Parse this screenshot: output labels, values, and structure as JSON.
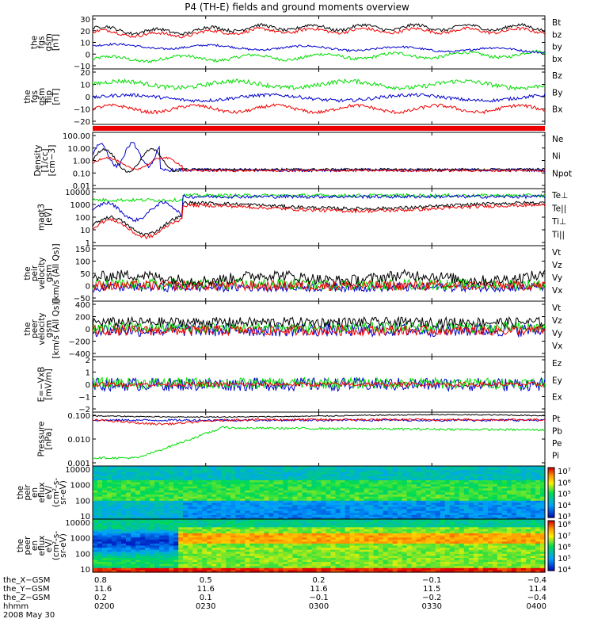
{
  "title": "P4 (TH-E) fields and ground moments overview",
  "colors": {
    "black": "#000000",
    "red": "#ee0000",
    "green": "#00dd00",
    "blue": "#0000cc"
  },
  "chart_data": {
    "type": "line",
    "time_labels": [
      "0200",
      "0230",
      "0300",
      "0330",
      "0400"
    ],
    "panels": [
      {
        "ylabel": [
          "the",
          "fgs",
          "gsm",
          "[nT]"
        ],
        "ticks": [
          "30",
          "20",
          "10",
          "0",
          "−10"
        ],
        "ylim": [
          -18,
          32
        ],
        "series": [
          {
            "name": "Bt",
            "color": "#000000"
          },
          {
            "name": "bz",
            "color": "#ee0000"
          },
          {
            "name": "by",
            "color": "#00dd00"
          },
          {
            "name": "bx",
            "color": "#0000cc"
          }
        ]
      },
      {
        "ylabel": [
          "the",
          "fgs",
          "gsm",
          "flip",
          "[nT]"
        ],
        "ticks": [
          "20",
          "10",
          "0",
          "−10",
          "−20"
        ],
        "ylim": [
          -26,
          22
        ],
        "series": [
          {
            "name": "Bz",
            "color": "#ee0000"
          },
          {
            "name": "By",
            "color": "#00dd00"
          },
          {
            "name": "Bx",
            "color": "#0000cc"
          }
        ]
      },
      {
        "ylabel": [
          "Density",
          "[1/cc]",
          "[cm−3]"
        ],
        "ticks": [
          "100.00",
          "10.00",
          "1.00",
          "0.10",
          "0.01"
        ],
        "ylim": [
          0.01,
          100
        ],
        "log": true,
        "series": [
          {
            "name": "Ne",
            "color": "#ee0000"
          },
          {
            "name": "Ni",
            "color": "#000000"
          },
          {
            "name": "Npot",
            "color": "#0000cc"
          }
        ]
      },
      {
        "ylabel": [
          "magt3",
          "[eV]"
        ],
        "ticks": [
          "10000",
          "1000",
          "100",
          "10",
          "1"
        ],
        "ylim": [
          1,
          10000
        ],
        "log": true,
        "series": [
          {
            "name": "Te⊥",
            "color": "#ee0000"
          },
          {
            "name": "Te||",
            "color": "#000000"
          },
          {
            "name": "Ti⊥",
            "color": "#0000cc"
          },
          {
            "name": "Ti||",
            "color": "#00dd00"
          }
        ]
      },
      {
        "ylabel": [
          "the",
          "peir",
          "velocity",
          "gsm",
          "[km/s (All Qs)]"
        ],
        "ticks": [
          "150",
          "100",
          "50",
          "0",
          "−50"
        ],
        "ylim": [
          -60,
          150
        ],
        "series": [
          {
            "name": "Vt",
            "color": "#000000"
          },
          {
            "name": "Vz",
            "color": "#ee0000"
          },
          {
            "name": "Vy",
            "color": "#00dd00"
          },
          {
            "name": "Vx",
            "color": "#0000cc"
          }
        ]
      },
      {
        "ylabel": [
          "the",
          "peer",
          "velocity",
          "gsm",
          "[km/s (All Qs)]"
        ],
        "ticks": [
          "400",
          "200",
          "0",
          "−200",
          "−400"
        ],
        "ylim": [
          -400,
          400
        ],
        "series": [
          {
            "name": "Vt",
            "color": "#000000"
          },
          {
            "name": "Vz",
            "color": "#ee0000"
          },
          {
            "name": "Vy",
            "color": "#00dd00"
          },
          {
            "name": "Vx",
            "color": "#0000cc"
          }
        ]
      },
      {
        "ylabel": [
          "E=−VxB",
          "[mV/m]"
        ],
        "ticks": [
          "2",
          "1",
          "0",
          "−1",
          "−2"
        ],
        "ylim": [
          -2,
          2
        ],
        "series": [
          {
            "name": "Ez",
            "color": "#ee0000"
          },
          {
            "name": "Ey",
            "color": "#00dd00"
          },
          {
            "name": "Ex",
            "color": "#0000cc"
          }
        ]
      },
      {
        "ylabel": [
          "Pressure",
          "[nPa]"
        ],
        "ticks": [
          "0.100",
          "0.010",
          "0.001"
        ],
        "ylim": [
          0.0005,
          1
        ],
        "log": true,
        "series": [
          {
            "name": "Pt",
            "color": "#000000"
          },
          {
            "name": "Pb",
            "color": "#ee0000"
          },
          {
            "name": "Pe",
            "color": "#00dd00"
          },
          {
            "name": "Pi",
            "color": "#0000cc"
          }
        ]
      },
      {
        "ylabel": [
          "the",
          "peir",
          "en",
          "eflux",
          "eV/",
          "(cm²-s-",
          "sr-eV)"
        ],
        "ticks": [
          "10000",
          "1000",
          "100",
          "10"
        ],
        "ylim": [
          5,
          20000
        ],
        "log": true,
        "colorbar": [
          "10⁷",
          "10⁶",
          "10⁵",
          "10⁴",
          "10³"
        ],
        "type": "spectrogram"
      },
      {
        "ylabel": [
          "the",
          "peer",
          "en",
          "eflux",
          "eV/",
          "(cm²-s-",
          "sr-eV)"
        ],
        "ticks": [
          "10000",
          "1000",
          "100",
          "10"
        ],
        "ylim": [
          5,
          20000
        ],
        "log": true,
        "colorbar": [
          "10⁸",
          "10⁷",
          "10⁶",
          "10⁵",
          "10⁴"
        ],
        "type": "spectrogram"
      }
    ],
    "ephemeris": {
      "labels": [
        "the_X−GSM",
        "the_Y−GSM",
        "the_Z−GSM",
        "hhmm",
        "2008 May 30"
      ],
      "x": [
        "0.8",
        "0.5",
        "0.2",
        "−0.1",
        "−0.4"
      ],
      "y": [
        "11.6",
        "11.6",
        "11.6",
        "11.5",
        "11.4"
      ],
      "z": [
        "0.2",
        "0.1",
        "−0.1",
        "−0.2",
        "−0.4"
      ]
    }
  }
}
